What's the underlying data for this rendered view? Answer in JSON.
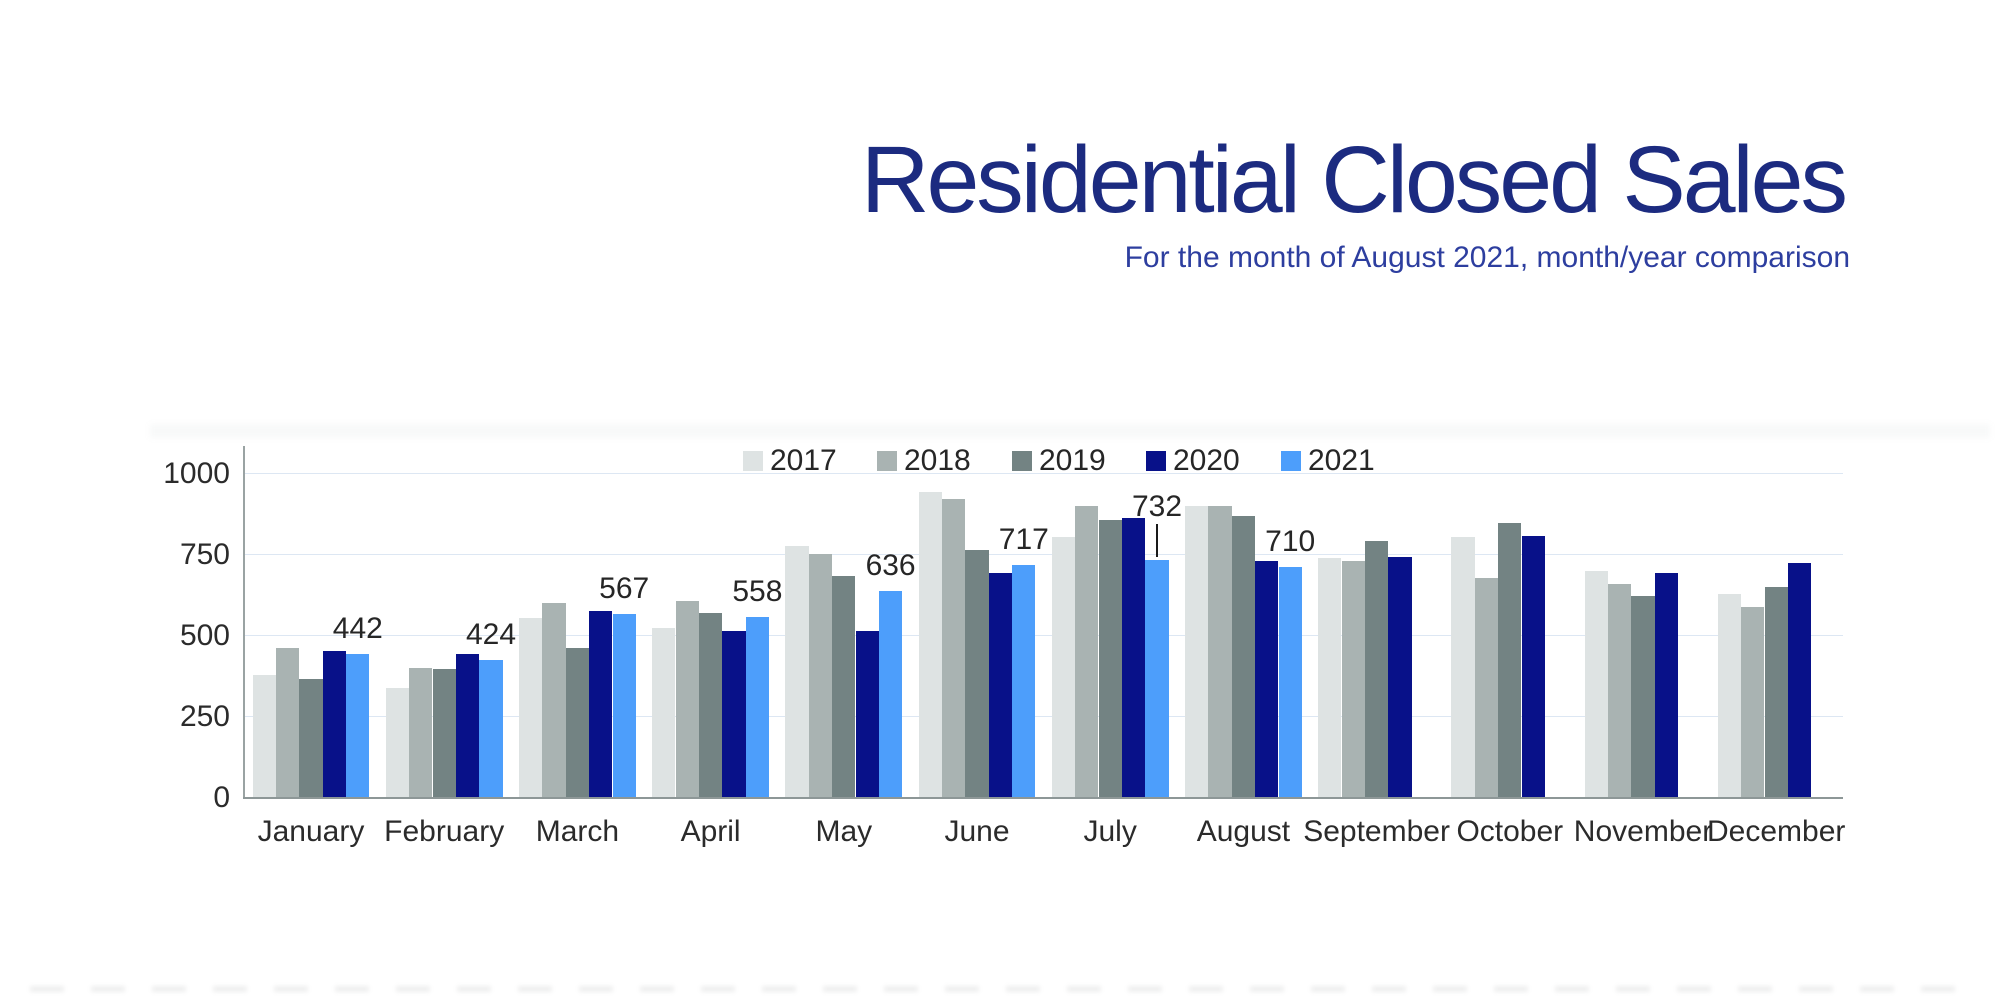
{
  "header": {
    "title": "Residential Closed Sales",
    "subtitle": "For the month of August 2021, month/year comparison"
  },
  "colors": {
    "title_text": "#1c2b80",
    "subtitle_text": "#2d3e9f",
    "axis_line": "#9aa3a3",
    "baseline": "#8d9797",
    "gridline": "#dde7f3",
    "tick_text": "#2b2b2b",
    "data_label_text": "#262626"
  },
  "chart_data": {
    "type": "bar",
    "title": "Residential Closed Sales",
    "subtitle": "For the month of August 2021, month/year comparison",
    "categories": [
      "January",
      "February",
      "March",
      "April",
      "May",
      "June",
      "July",
      "August",
      "September",
      "October",
      "November",
      "December"
    ],
    "series": [
      {
        "name": "2017",
        "color": "#dee3e3",
        "values": [
          378,
          338,
          554,
          524,
          775,
          943,
          804,
          899,
          740,
          804,
          700,
          627
        ]
      },
      {
        "name": "2018",
        "color": "#a9b3b2",
        "values": [
          462,
          401,
          600,
          607,
          753,
          920,
          899,
          901,
          730,
          678,
          660,
          588
        ]
      },
      {
        "name": "2019",
        "color": "#738383",
        "values": [
          365,
          398,
          461,
          568,
          683,
          763,
          858,
          868,
          792,
          847,
          621,
          649
        ]
      },
      {
        "name": "2020",
        "color": "#081189",
        "values": [
          452,
          444,
          577,
          514,
          514,
          692,
          862,
          731,
          741,
          806,
          692,
          723
        ]
      },
      {
        "name": "2021",
        "color": "#4d9efb",
        "values": [
          442,
          424,
          567,
          558,
          636,
          717,
          732,
          710,
          null,
          null,
          null,
          null
        ]
      }
    ],
    "data_labels": [
      {
        "month": "January",
        "text": "442"
      },
      {
        "month": "February",
        "text": "424"
      },
      {
        "month": "March",
        "text": "567"
      },
      {
        "month": "April",
        "text": "558"
      },
      {
        "month": "May",
        "text": "636"
      },
      {
        "month": "June",
        "text": "717"
      },
      {
        "month": "July",
        "text": "732",
        "leader_line": true
      },
      {
        "month": "August",
        "text": "710"
      }
    ],
    "yticks": [
      "0",
      "250",
      "500",
      "750",
      "1000"
    ],
    "ylim": [
      0,
      1080
    ],
    "grid": "horizontal",
    "legend_position": "top-center",
    "legend_entries": [
      "2017",
      "2018",
      "2019",
      "2020",
      "2021"
    ]
  }
}
